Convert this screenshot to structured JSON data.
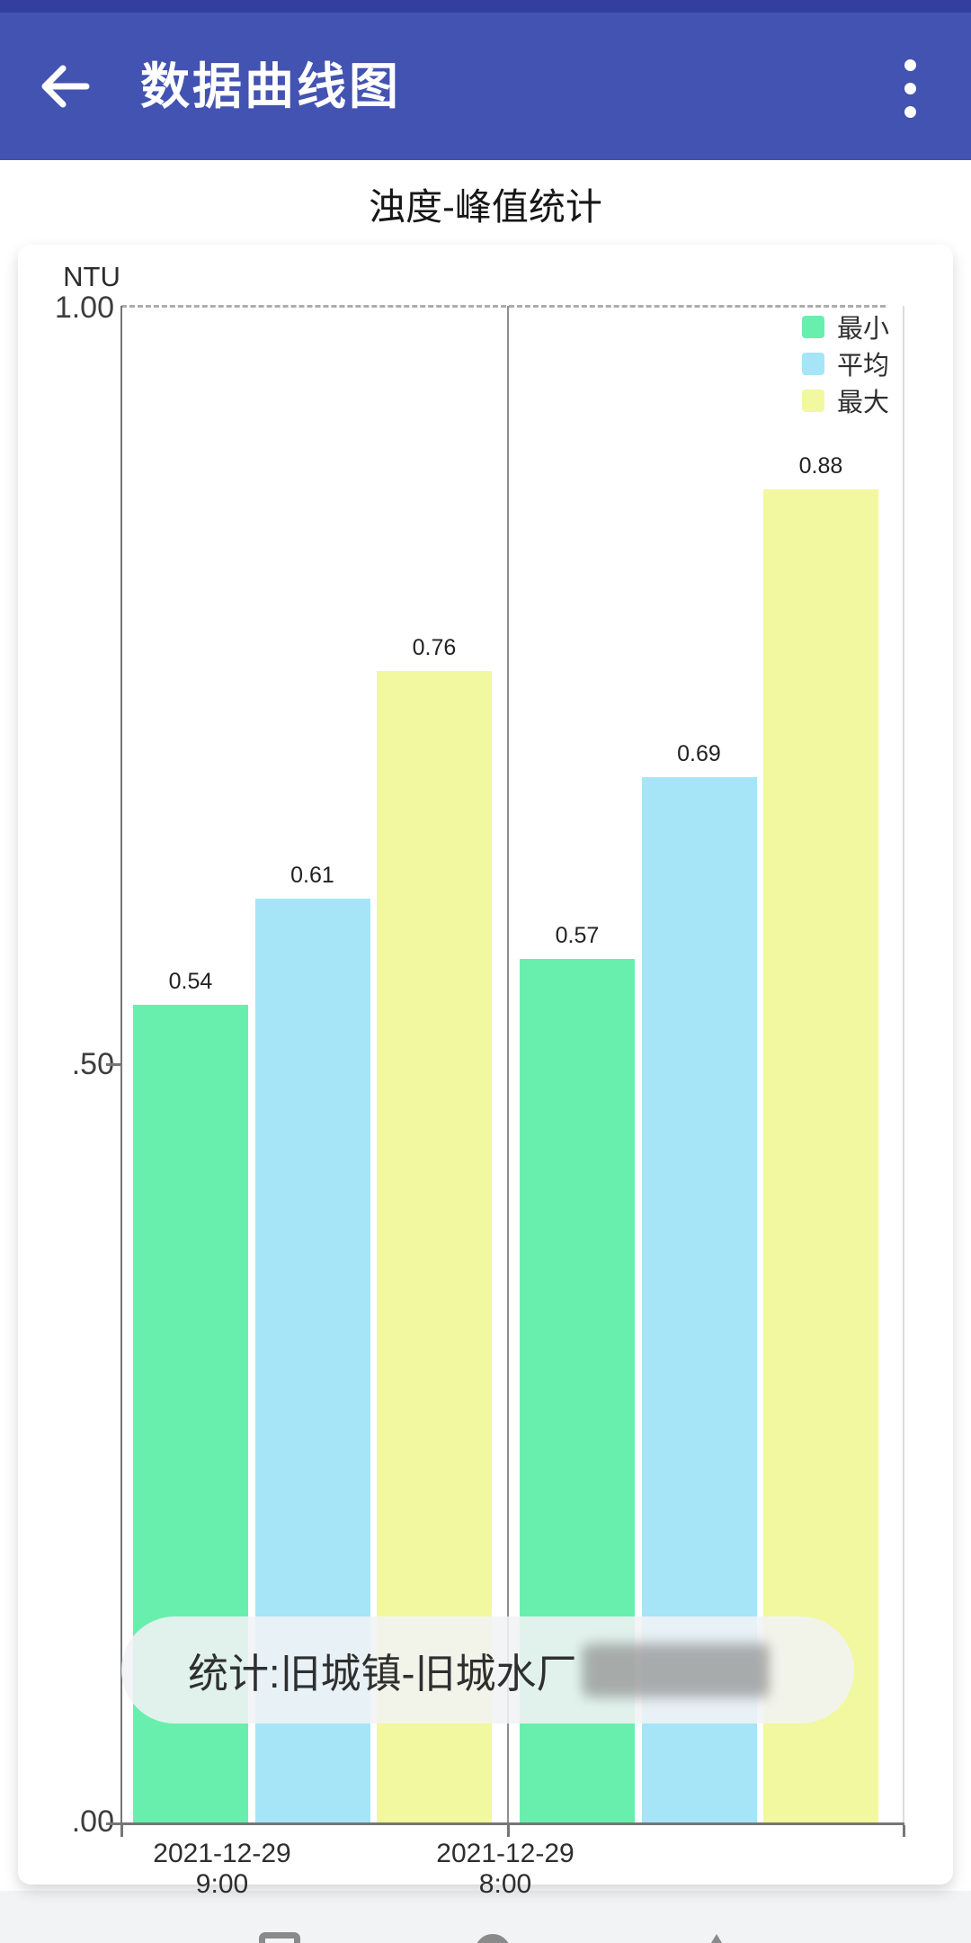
{
  "app_bar": {
    "title": "数据曲线图",
    "colors": {
      "bar": "#4253B1",
      "status_strip": "#333F9F"
    }
  },
  "subtitle": "浊度-峰值统计",
  "chart_data": {
    "type": "bar",
    "title": "浊度-峰值统计",
    "unit": "NTU",
    "categories": [
      "2021-12-29 9:00",
      "2021-12-29 8:00"
    ],
    "series": [
      {
        "name": "最小",
        "color": "#69EFAD",
        "values": [
          0.54,
          0.57
        ]
      },
      {
        "name": "平均",
        "color": "#A6E4F8",
        "values": [
          0.61,
          0.69
        ]
      },
      {
        "name": "最大",
        "color": "#F1F89F",
        "values": [
          0.76,
          0.88
        ]
      }
    ],
    "ylim": [
      0,
      1.0
    ],
    "yticks": [
      "1.00",
      ".50",
      ".00"
    ],
    "ytick_values": [
      1.0,
      0.5,
      0.0
    ],
    "legend_position": "top-right",
    "grid": {
      "top_dashed_line": true,
      "vertical_category_separators": true
    },
    "value_labels": [
      "0.54",
      "0.61",
      "0.76",
      "0.57",
      "0.69",
      "0.88"
    ]
  },
  "tooltip": {
    "text": "统计:旧城镇-旧城水厂",
    "redacted_suffix": true
  }
}
